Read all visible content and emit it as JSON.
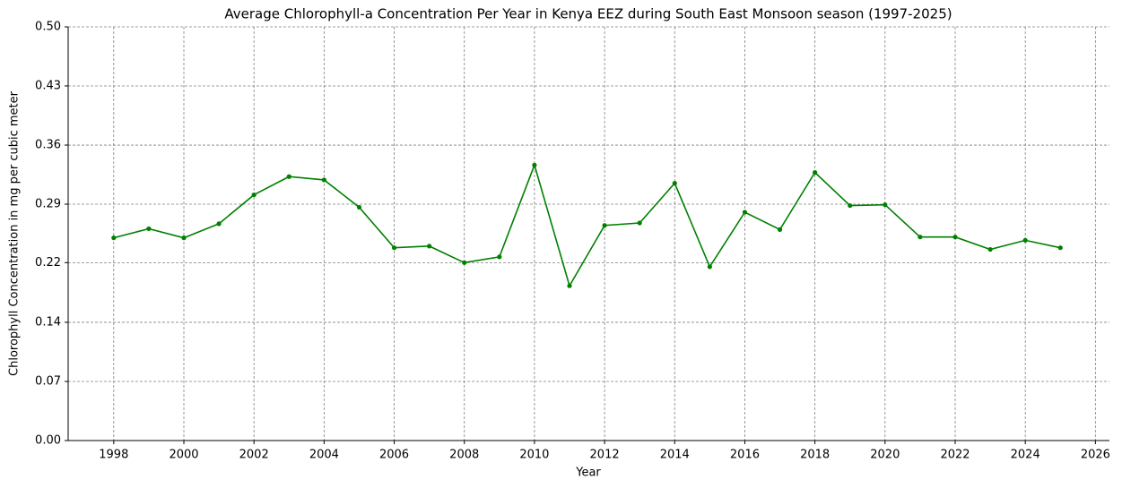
{
  "chart_data": {
    "type": "line",
    "title": "Average Chlorophyll-a Concentration Per Year in Kenya EEZ during South East Monsoon season (1997-2025)",
    "xlabel": "Year",
    "ylabel": "Chlorophyll Concentration in mg per cubic meter",
    "x": [
      1998,
      1999,
      2000,
      2001,
      2002,
      2003,
      2004,
      2005,
      2006,
      2007,
      2008,
      2009,
      2010,
      2011,
      2012,
      2013,
      2014,
      2015,
      2016,
      2017,
      2018,
      2019,
      2020,
      2021,
      2022,
      2023,
      2024,
      2025
    ],
    "series": [
      {
        "color": "#008000",
        "values": [
          0.245,
          0.256,
          0.245,
          0.262,
          0.297,
          0.319,
          0.315,
          0.282,
          0.233,
          0.235,
          0.215,
          0.222,
          0.333,
          0.187,
          0.26,
          0.263,
          0.311,
          0.21,
          0.276,
          0.255,
          0.324,
          0.284,
          0.285,
          0.246,
          0.246,
          0.231,
          0.242,
          0.233
        ]
      }
    ],
    "xlim": [
      1996.7,
      2026.4
    ],
    "xticks": [
      1998,
      2000,
      2002,
      2004,
      2006,
      2008,
      2010,
      2012,
      2014,
      2016,
      2018,
      2020,
      2022,
      2024,
      2026
    ],
    "ylim": [
      0,
      0.5
    ],
    "yticks": [
      {
        "value": 0,
        "label": "0.00"
      },
      {
        "value": 0.0714,
        "label": "0.07"
      },
      {
        "value": 0.1429,
        "label": "0.14"
      },
      {
        "value": 0.215,
        "label": "0.22"
      },
      {
        "value": 0.2857,
        "label": "0.29"
      },
      {
        "value": 0.3571,
        "label": "0.36"
      },
      {
        "value": 0.4286,
        "label": "0.43"
      },
      {
        "value": 0.5,
        "label": "0.50"
      }
    ],
    "grid": true
  }
}
